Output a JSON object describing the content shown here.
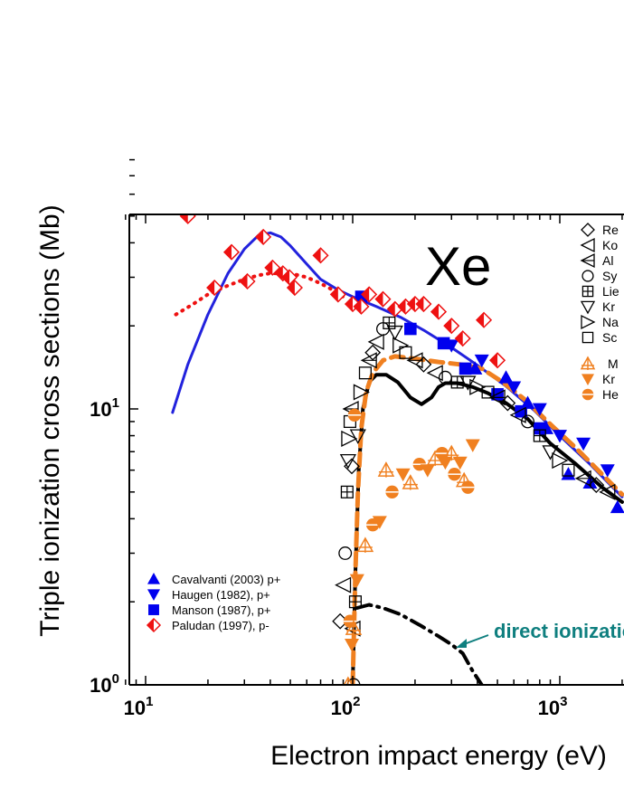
{
  "chart_data": {
    "type": "scatter",
    "title": "",
    "element": "Xe",
    "xlabel": "Electron impact energy (eV)",
    "ylabel": "Triple ionization cross sections (Mb)",
    "xscale": "log",
    "yscale": "log",
    "xlim": [
      8,
      2000
    ],
    "ylim": [
      1,
      80
    ],
    "x_ticks": [
      {
        "value": 10,
        "base": "10",
        "exp": "1"
      },
      {
        "value": 100,
        "base": "10",
        "exp": "2"
      },
      {
        "value": 1000,
        "base": "10",
        "exp": "3"
      }
    ],
    "y_ticks": [
      {
        "value": 1,
        "base": "10",
        "exp": "0"
      },
      {
        "value": 10,
        "base": "10",
        "exp": "1"
      }
    ],
    "legend_left": [
      {
        "label": "Cavalvanti (2003) p+",
        "marker": "triangle-up",
        "color": "#0000ee"
      },
      {
        "label": "Haugen (1982), p+",
        "marker": "triangle-down",
        "color": "#0000ee"
      },
      {
        "label": "Manson (1987), p+",
        "marker": "square",
        "color": "#0000ee"
      },
      {
        "label": "Paludan (1997), p-",
        "marker": "half-diamond",
        "color": "#ee1111"
      }
    ],
    "legend_right": [
      {
        "label": "Re",
        "marker": "diamond-open"
      },
      {
        "label": "Ko",
        "marker": "triangle-left-open"
      },
      {
        "label": "Al",
        "marker": "triangle-left-cross"
      },
      {
        "label": "Sy",
        "marker": "circle-open"
      },
      {
        "label": "Lie",
        "marker": "square-plus"
      },
      {
        "label": "Kr",
        "marker": "triangle-down-open"
      },
      {
        "label": "Na",
        "marker": "triangle-right-open"
      },
      {
        "label": "Sc",
        "marker": "square-open"
      },
      {
        "label": "M",
        "marker": "triangle-up-cross-orange"
      },
      {
        "label": "Kr",
        "marker": "triangle-down-orange"
      },
      {
        "label": "He",
        "marker": "circle-half-orange"
      }
    ],
    "annotation": {
      "text": "direct ionization",
      "x": 350,
      "y": 1.3
    },
    "series": [
      {
        "name": "Theory proton (blue line)",
        "style": "solid",
        "color": "#2222dd",
        "x": [
          13.5,
          16,
          20,
          25,
          30,
          35,
          40,
          45,
          50,
          60,
          70,
          85,
          100,
          130,
          170,
          220,
          300,
          400,
          550,
          750,
          1000,
          1400,
          2000
        ],
        "y": [
          9.7,
          14.5,
          22,
          31,
          38,
          42.5,
          43.5,
          42,
          39,
          33.5,
          29.5,
          27,
          25.5,
          23.5,
          21.5,
          19.3,
          16.7,
          14.4,
          12.1,
          9.9,
          8.0,
          6.3,
          4.8
        ]
      },
      {
        "name": "Theory antiproton (red dotted)",
        "style": "dotted",
        "color": "#ee1111",
        "x": [
          14,
          17,
          20,
          25,
          30,
          35,
          40,
          50,
          60,
          70,
          80,
          90
        ],
        "y": [
          22,
          24,
          26,
          28,
          29.5,
          30.5,
          31,
          31,
          30,
          28.5,
          27,
          25.5
        ]
      },
      {
        "name": "Electron total (black solid)",
        "style": "solid",
        "color": "#000000",
        "x": [
          100,
          103,
          107,
          112,
          120,
          130,
          145,
          165,
          190,
          215,
          240,
          260,
          280,
          320,
          380,
          450,
          550,
          700,
          900,
          1200,
          1600,
          2000
        ],
        "y": [
          1.0,
          2.5,
          6,
          10,
          12.5,
          13.3,
          13.3,
          12.5,
          11.0,
          10.4,
          11.0,
          12.0,
          12.4,
          12.4,
          12.0,
          11.4,
          10.5,
          9.2,
          7.5,
          6.3,
          5.2,
          4.6
        ]
      },
      {
        "name": "Electron fit (orange dashed)",
        "style": "dashed",
        "color": "#f08020",
        "x": [
          100,
          103,
          106,
          110,
          116,
          125,
          140,
          160,
          200,
          260,
          330,
          420,
          530,
          680,
          900,
          1200,
          1600,
          2000
        ],
        "y": [
          1.0,
          2.5,
          5,
          8.5,
          11.5,
          13.5,
          15,
          15.5,
          15.2,
          14.8,
          14.5,
          14.0,
          12.5,
          10.8,
          8.8,
          7.2,
          5.8,
          4.9
        ]
      },
      {
        "name": "Direct ionization (black dash-dot)",
        "style": "dashdot",
        "color": "#000000",
        "x": [
          105,
          120,
          140,
          170,
          210,
          260,
          300,
          340,
          380,
          420
        ],
        "y": [
          1.9,
          1.95,
          1.9,
          1.8,
          1.65,
          1.5,
          1.4,
          1.3,
          1.12,
          1.0
        ]
      },
      {
        "name": "Cavalvanti (2003) p+",
        "marker": "triangle-up",
        "color": "#0000ee",
        "x": [
          390,
          550,
          700,
          860,
          1100,
          1400,
          1900
        ],
        "y": [
          14,
          13,
          10.5,
          8.5,
          5.8,
          5.4,
          4.4
        ]
      },
      {
        "name": "Haugen (1982), p+",
        "marker": "triangle-down",
        "color": "#0000ee",
        "x": [
          300,
          420,
          600,
          800,
          1000,
          1300,
          1700
        ],
        "y": [
          17,
          15,
          12,
          10,
          8,
          7.5,
          6
        ]
      },
      {
        "name": "Manson (1987), p+",
        "marker": "square",
        "color": "#0000ee",
        "x": [
          110,
          190,
          275,
          350,
          500,
          650,
          800
        ],
        "y": [
          25.5,
          19.5,
          17.3,
          14,
          11.3,
          9.8,
          8.5
        ]
      },
      {
        "name": "Paludan (1997), p-",
        "marker": "half-diamond",
        "color": "#ee1111",
        "x": [
          16,
          21.5,
          26,
          31,
          37,
          41,
          46,
          49.5,
          52.5,
          70,
          85,
          100,
          110,
          120,
          140,
          160,
          180,
          200,
          220,
          260,
          300,
          340,
          430,
          500
        ],
        "y": [
          50,
          27.5,
          37,
          29,
          42,
          32.5,
          31,
          30,
          27.5,
          36,
          26,
          24,
          23.5,
          26,
          25,
          23,
          23.5,
          24,
          24,
          22.5,
          20,
          18,
          21,
          15
        ]
      },
      {
        "name": "Electron impact data (black open)",
        "marker": "mixed-open",
        "color": "#000000",
        "x": [
          87,
          90,
          92,
          94,
          95,
          96,
          97,
          98,
          99,
          100,
          101,
          103,
          106,
          110,
          115,
          120,
          125,
          130,
          140,
          150,
          160,
          170,
          180,
          200,
          220,
          250,
          280,
          320,
          360,
          400,
          450,
          500,
          560,
          630,
          700,
          800,
          900,
          1000,
          1100,
          1300,
          1500,
          1700
        ],
        "y": [
          1.7,
          2.3,
          3.0,
          5.0,
          6.5,
          7.8,
          9.0,
          10,
          6.2,
          1.6,
          1.0,
          2.0,
          8.0,
          11.5,
          13.5,
          15,
          16,
          17.5,
          19.5,
          20.5,
          19,
          17,
          16,
          15,
          14.5,
          13.5,
          13,
          12.5,
          12.5,
          12,
          11.5,
          11,
          10.5,
          9.5,
          9,
          8,
          7,
          6.5,
          6,
          5.6,
          5.3,
          5.0
        ]
      },
      {
        "name": "Orange electron data",
        "marker": "mixed-orange",
        "color": "#f08020",
        "x": [
          95,
          97,
          99,
          101,
          102,
          105,
          115,
          125,
          135,
          145,
          155,
          175,
          190,
          210,
          230,
          250,
          270,
          280,
          300,
          310,
          330,
          345,
          360,
          380
        ],
        "y": [
          1.0,
          1.7,
          1.4,
          1.6,
          9.5,
          2.4,
          3.2,
          3.8,
          3.9,
          6.0,
          5.0,
          5.8,
          5.4,
          6.3,
          6.0,
          6.6,
          6.9,
          6.4,
          6.9,
          5.8,
          6.4,
          5.5,
          5.2,
          7.4
        ]
      }
    ]
  }
}
